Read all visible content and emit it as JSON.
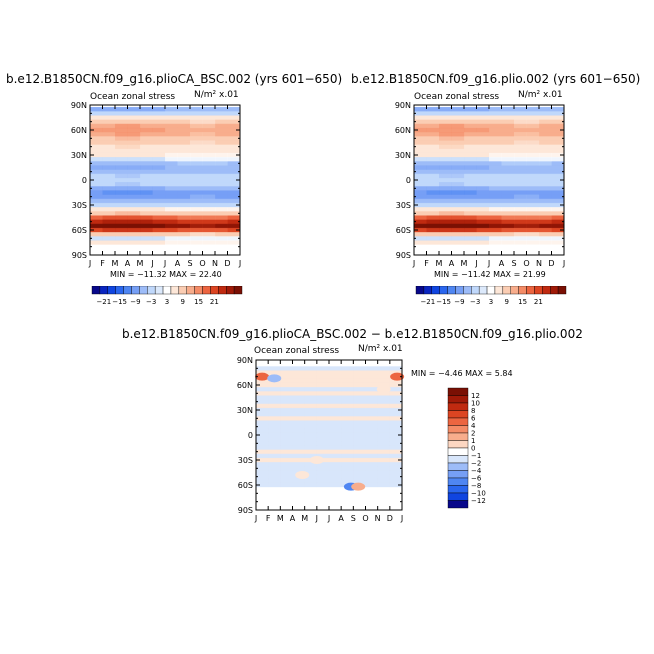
{
  "chart_data": [
    {
      "type": "heatmap",
      "title": "b.e12.B1850CN.f09_g16.plioCA_BSC.002 (yrs 601−650)",
      "subtitle_left": "Ocean zonal stress",
      "subtitle_right": "N/m² x.01",
      "stats": "MIN = −11.32 MAX =  22.40",
      "x_ticks": [
        "J",
        "F",
        "M",
        "A",
        "M",
        "J",
        "J",
        "A",
        "S",
        "O",
        "N",
        "D",
        "J"
      ],
      "y_ticks": [
        "90N",
        "60N",
        "30N",
        "0",
        "30S",
        "60S",
        "90S"
      ],
      "bands": [
        {
          "lat": 85,
          "value": -6
        },
        {
          "lat": 80,
          "value": -2
        },
        {
          "lat": 75,
          "value": 2
        },
        {
          "lat": 70,
          "value": 4
        },
        {
          "lat": 65,
          "value": 7
        },
        {
          "lat": 60,
          "value": 8
        },
        {
          "lat": 55,
          "value": 7
        },
        {
          "lat": 50,
          "value": 5
        },
        {
          "lat": 45,
          "value": 4
        },
        {
          "lat": 40,
          "value": 3
        },
        {
          "lat": 35,
          "value": 2
        },
        {
          "lat": 30,
          "value": 1
        },
        {
          "lat": 25,
          "value": -1
        },
        {
          "lat": 20,
          "value": -4
        },
        {
          "lat": 15,
          "value": -6
        },
        {
          "lat": 10,
          "value": -5
        },
        {
          "lat": 5,
          "value": -3
        },
        {
          "lat": 0,
          "value": -2
        },
        {
          "lat": -5,
          "value": -3
        },
        {
          "lat": -10,
          "value": -6
        },
        {
          "lat": -15,
          "value": -8
        },
        {
          "lat": -20,
          "value": -7
        },
        {
          "lat": -25,
          "value": -5
        },
        {
          "lat": -30,
          "value": -2
        },
        {
          "lat": -35,
          "value": 1
        },
        {
          "lat": -40,
          "value": 5
        },
        {
          "lat": -45,
          "value": 12
        },
        {
          "lat": -50,
          "value": 17
        },
        {
          "lat": -55,
          "value": 21
        },
        {
          "lat": -60,
          "value": 14
        },
        {
          "lat": -65,
          "value": 4
        },
        {
          "lat": -70,
          "value": -1
        },
        {
          "lat": -75,
          "value": 1
        },
        {
          "lat": -80,
          "value": 0
        }
      ]
    },
    {
      "type": "heatmap",
      "title": "b.e12.B1850CN.f09_g16.plio.002 (yrs 601−650)",
      "subtitle_left": "Ocean zonal stress",
      "subtitle_right": "N/m² x.01",
      "stats": "MIN = −11.42 MAX =  21.99",
      "x_ticks": [
        "J",
        "F",
        "M",
        "A",
        "M",
        "J",
        "J",
        "A",
        "S",
        "O",
        "N",
        "D",
        "J"
      ],
      "y_ticks": [
        "90N",
        "60N",
        "30N",
        "0",
        "30S",
        "60S",
        "90S"
      ],
      "bands": [
        {
          "lat": 85,
          "value": -6
        },
        {
          "lat": 80,
          "value": -2
        },
        {
          "lat": 75,
          "value": 2
        },
        {
          "lat": 70,
          "value": 4
        },
        {
          "lat": 65,
          "value": 7
        },
        {
          "lat": 60,
          "value": 8
        },
        {
          "lat": 55,
          "value": 7
        },
        {
          "lat": 50,
          "value": 5
        },
        {
          "lat": 45,
          "value": 4
        },
        {
          "lat": 40,
          "value": 3
        },
        {
          "lat": 35,
          "value": 2
        },
        {
          "lat": 30,
          "value": 1
        },
        {
          "lat": 25,
          "value": -1
        },
        {
          "lat": 20,
          "value": -4
        },
        {
          "lat": 15,
          "value": -6
        },
        {
          "lat": 10,
          "value": -5
        },
        {
          "lat": 5,
          "value": -3
        },
        {
          "lat": 0,
          "value": -2
        },
        {
          "lat": -5,
          "value": -3
        },
        {
          "lat": -10,
          "value": -6
        },
        {
          "lat": -15,
          "value": -8
        },
        {
          "lat": -20,
          "value": -7
        },
        {
          "lat": -25,
          "value": -5
        },
        {
          "lat": -30,
          "value": -2
        },
        {
          "lat": -35,
          "value": 1
        },
        {
          "lat": -40,
          "value": 5
        },
        {
          "lat": -45,
          "value": 12
        },
        {
          "lat": -50,
          "value": 17
        },
        {
          "lat": -55,
          "value": 21
        },
        {
          "lat": -60,
          "value": 14
        },
        {
          "lat": -65,
          "value": 4
        },
        {
          "lat": -70,
          "value": -1
        },
        {
          "lat": -75,
          "value": 1
        },
        {
          "lat": -80,
          "value": 0
        }
      ]
    },
    {
      "type": "heatmap",
      "title": "b.e12.B1850CN.f09_g16.plioCA_BSC.002 − b.e12.B1850CN.f09_g16.plio.002",
      "subtitle_left": "Ocean zonal stress",
      "subtitle_right": "N/m² x.01",
      "stats": "MIN =  −4.46 MAX =   5.84",
      "x_ticks": [
        "J",
        "F",
        "M",
        "A",
        "M",
        "J",
        "J",
        "A",
        "S",
        "O",
        "N",
        "D",
        "J"
      ],
      "y_ticks": [
        "90N",
        "60N",
        "30N",
        "0",
        "30S",
        "60S",
        "90S"
      ],
      "bands": [
        {
          "lat": 85,
          "value": 0
        },
        {
          "lat": 80,
          "value": -0.5
        },
        {
          "lat": 75,
          "value": 0.5
        },
        {
          "lat": 70,
          "value": 1
        },
        {
          "lat": 65,
          "value": 0.5
        },
        {
          "lat": 60,
          "value": 0.5
        },
        {
          "lat": 55,
          "value": -0.5
        },
        {
          "lat": 50,
          "value": 0.5
        },
        {
          "lat": 45,
          "value": -0.5
        },
        {
          "lat": 40,
          "value": -0.5
        },
        {
          "lat": 35,
          "value": 0.5
        },
        {
          "lat": 30,
          "value": -0.5
        },
        {
          "lat": 25,
          "value": -0.5
        },
        {
          "lat": 20,
          "value": 0.5
        },
        {
          "lat": 15,
          "value": -0.5
        },
        {
          "lat": 10,
          "value": -0.5
        },
        {
          "lat": 5,
          "value": -0.5
        },
        {
          "lat": 0,
          "value": -0.5
        },
        {
          "lat": -5,
          "value": -0.5
        },
        {
          "lat": -10,
          "value": -0.5
        },
        {
          "lat": -15,
          "value": -0.5
        },
        {
          "lat": -20,
          "value": 0.5
        },
        {
          "lat": -25,
          "value": -0.5
        },
        {
          "lat": -30,
          "value": 0.5
        },
        {
          "lat": -35,
          "value": -0.5
        },
        {
          "lat": -40,
          "value": -0.5
        },
        {
          "lat": -45,
          "value": -0.5
        },
        {
          "lat": -50,
          "value": -0.5
        },
        {
          "lat": -55,
          "value": -0.5
        },
        {
          "lat": -60,
          "value": -0.5
        },
        {
          "lat": -65,
          "value": 0
        },
        {
          "lat": -70,
          "value": 0
        },
        {
          "lat": -75,
          "value": 0
        },
        {
          "lat": -80,
          "value": 0
        }
      ],
      "spots": [
        {
          "month": 0.5,
          "lat": 70,
          "value": 4
        },
        {
          "month": 11.6,
          "lat": 70,
          "value": 4
        },
        {
          "month": 1.5,
          "lat": 68,
          "value": -2
        },
        {
          "month": 10.5,
          "lat": 55,
          "value": 1
        },
        {
          "month": 7.8,
          "lat": -62,
          "value": -3
        },
        {
          "month": 8.4,
          "lat": -62,
          "value": 2
        },
        {
          "month": 3.8,
          "lat": -48,
          "value": 1
        },
        {
          "month": 5,
          "lat": -30,
          "value": 1
        }
      ]
    }
  ],
  "colorbars": {
    "full": {
      "labels": [
        "−21",
        "−15",
        "−9",
        "−3",
        "3",
        "9",
        "15",
        "21"
      ],
      "colors": [
        "#08088a",
        "#0a25c0",
        "#1045e0",
        "#2a66ee",
        "#4f86f2",
        "#769ff5",
        "#9dbcf8",
        "#c0d8fb",
        "#dce9fb",
        "#ffffff",
        "#fde7d8",
        "#fbcdb3",
        "#f8ad8c",
        "#f48b66",
        "#ec6540",
        "#dc4522",
        "#c02a10",
        "#a01a08",
        "#7a1004"
      ]
    },
    "diff": {
      "labels": [
        "12",
        "10",
        "8",
        "6",
        "4",
        "2",
        "1",
        "0",
        "−1",
        "−2",
        "−4",
        "−6",
        "−8",
        "−10",
        "−12"
      ],
      "colors": [
        "#7a1004",
        "#a01a08",
        "#c02a10",
        "#dc4522",
        "#ec6540",
        "#f48b66",
        "#f8ad8c",
        "#fdd7c2",
        "#ffffff",
        "#d8e6fb",
        "#9dbcf8",
        "#769ff5",
        "#4f86f2",
        "#2a66ee",
        "#1045e0",
        "#08088a"
      ]
    }
  }
}
